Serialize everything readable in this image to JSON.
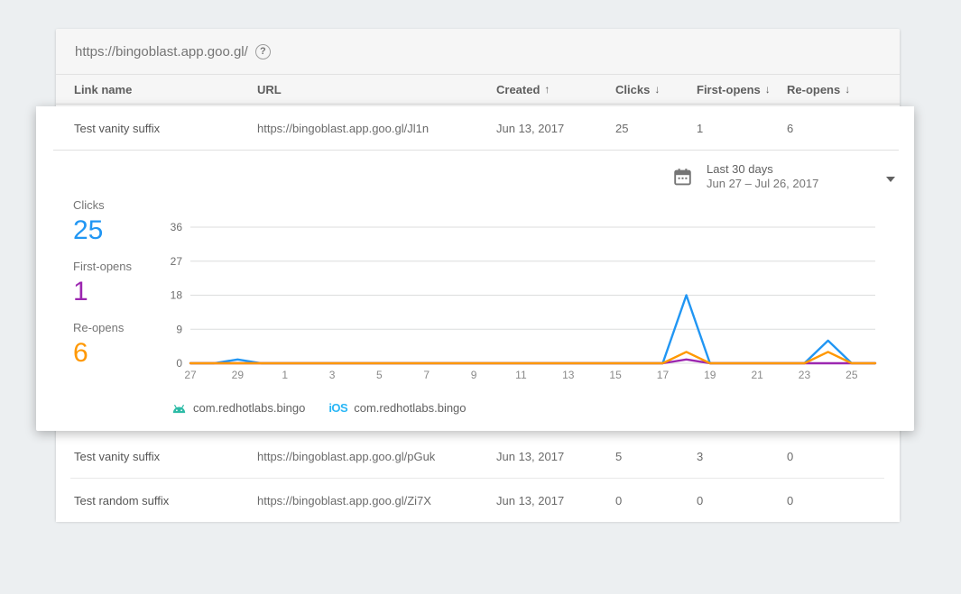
{
  "card": {
    "url": "https://bingoblast.app.goo.gl/",
    "help_icon": "?"
  },
  "table": {
    "columns": [
      {
        "label": "Link name",
        "arrow": ""
      },
      {
        "label": "URL",
        "arrow": ""
      },
      {
        "label": "Created",
        "arrow": "↑"
      },
      {
        "label": "Clicks",
        "arrow": "↓"
      },
      {
        "label": "First-opens",
        "arrow": "↓"
      },
      {
        "label": "Re-opens",
        "arrow": "↓"
      }
    ]
  },
  "links": [
    {
      "name": "Test vanity suffix",
      "url": "https://bingoblast.app.goo.gl/Jl1n",
      "created": "Jun 13, 2017",
      "clicks": "25",
      "first_opens": "1",
      "re_opens": "6"
    },
    {
      "name": "Test vanity suffix",
      "url": "https://bingoblast.app.goo.gl/pGuk",
      "created": "Jun 13, 2017",
      "clicks": "5",
      "first_opens": "3",
      "re_opens": "0"
    },
    {
      "name": "Test random suffix",
      "url": "https://bingoblast.app.goo.gl/Zi7X",
      "created": "Jun 13, 2017",
      "clicks": "0",
      "first_opens": "0",
      "re_opens": "0"
    }
  ],
  "detail_panel": {
    "date_range": {
      "label": "Last 30 days",
      "range": "Jun 27 – Jul 26, 2017"
    },
    "stats": [
      {
        "label": "Clicks",
        "value": "25",
        "color": "#2196F3"
      },
      {
        "label": "First-opens",
        "value": "1",
        "color": "#9C27B0"
      },
      {
        "label": "Re-opens",
        "value": "6",
        "color": "#FF9800"
      }
    ]
  },
  "chart_data": {
    "type": "line",
    "title": "",
    "x_range": "Jun 27 – Jul 26, 2017",
    "x_tick_labels": [
      "27",
      "29",
      "1",
      "3",
      "5",
      "7",
      "9",
      "11",
      "13",
      "15",
      "17",
      "19",
      "21",
      "23",
      "25"
    ],
    "y_ticks": [
      0,
      9,
      18,
      27,
      36
    ],
    "ylim": [
      0,
      36
    ],
    "grid": "horizontal",
    "legend_position": "bottom",
    "series": [
      {
        "name": "Clicks",
        "color": "#2196F3",
        "values": [
          0,
          0,
          1,
          0,
          0,
          0,
          0,
          0,
          0,
          0,
          0,
          0,
          0,
          0,
          0,
          0,
          0,
          0,
          0,
          0,
          0,
          18,
          0,
          0,
          0,
          0,
          0,
          6,
          0,
          0
        ]
      },
      {
        "name": "First-opens",
        "color": "#9C27B0",
        "values": [
          0,
          0,
          0,
          0,
          0,
          0,
          0,
          0,
          0,
          0,
          0,
          0,
          0,
          0,
          0,
          0,
          0,
          0,
          0,
          0,
          0,
          1,
          0,
          0,
          0,
          0,
          0,
          0,
          0,
          0
        ]
      },
      {
        "name": "Re-opens",
        "color": "#FF9800",
        "values": [
          0,
          0,
          0,
          0,
          0,
          0,
          0,
          0,
          0,
          0,
          0,
          0,
          0,
          0,
          0,
          0,
          0,
          0,
          0,
          0,
          0,
          3,
          0,
          0,
          0,
          0,
          0,
          3,
          0,
          0
        ]
      }
    ],
    "legend": [
      {
        "platform": "android",
        "label": "com.redhotlabs.bingo"
      },
      {
        "platform": "ios",
        "label": "com.redhotlabs.bingo"
      }
    ]
  }
}
